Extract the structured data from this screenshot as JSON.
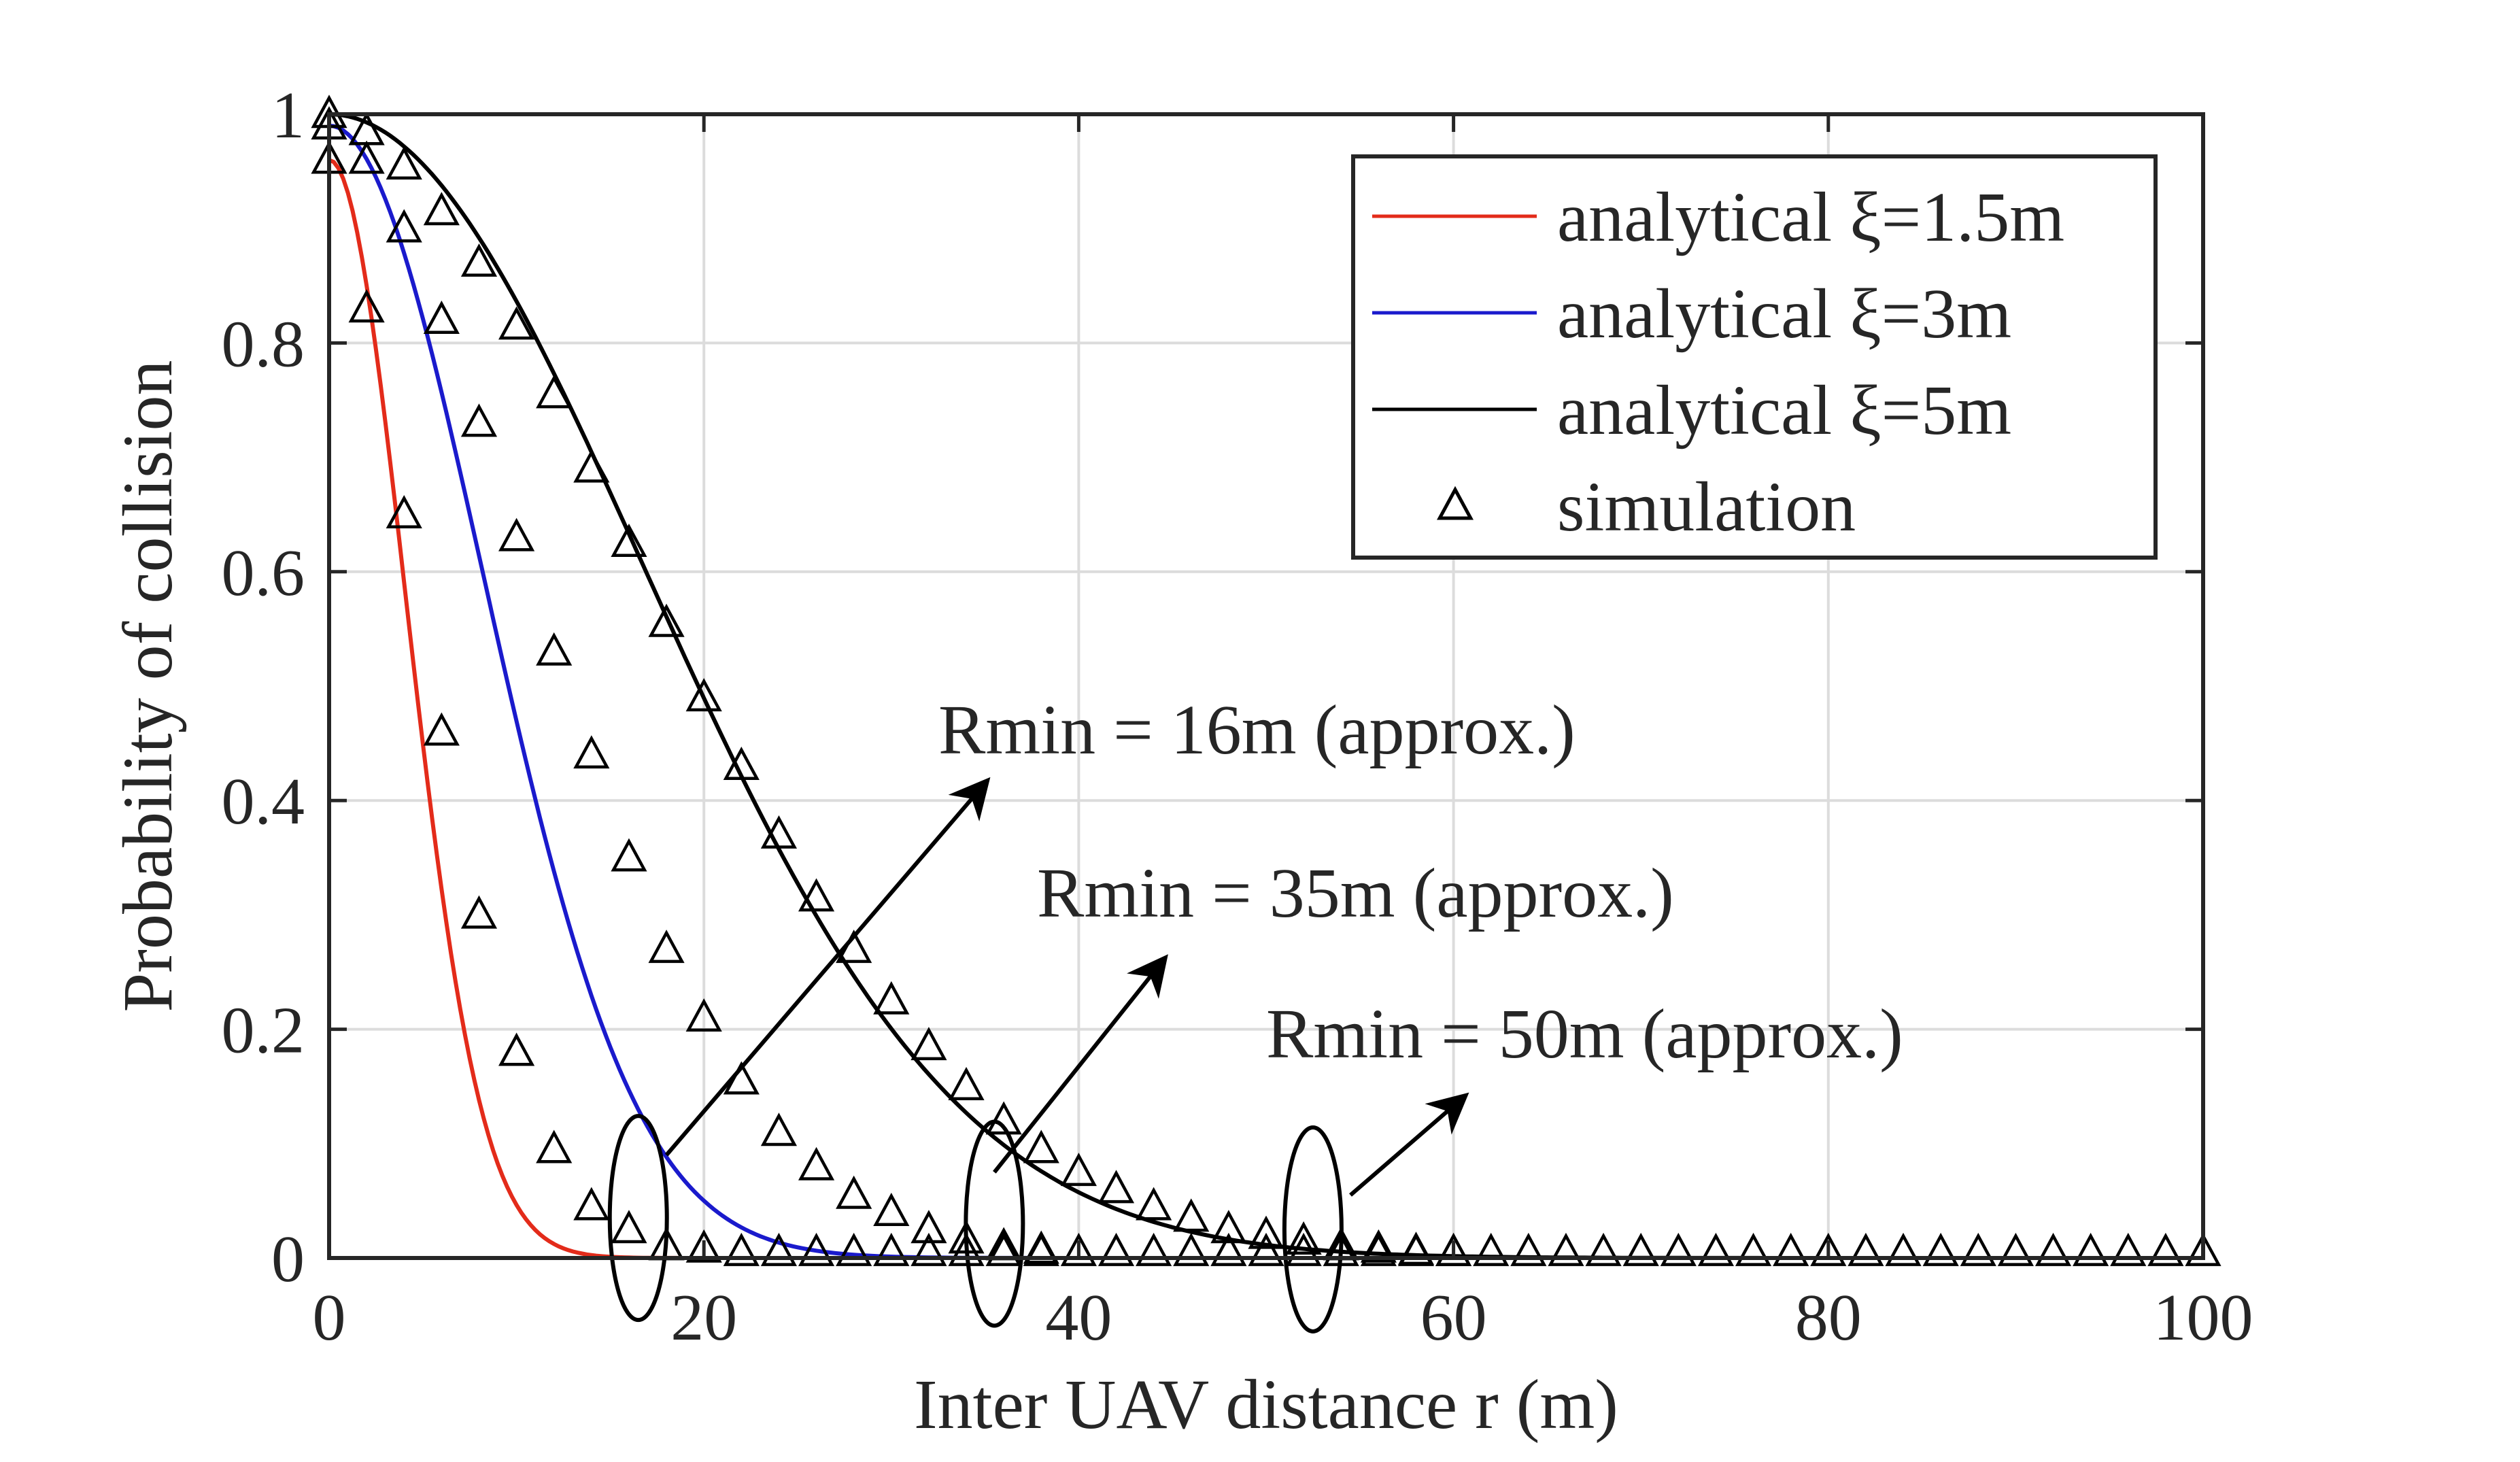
{
  "chart_data": {
    "type": "line",
    "title": "",
    "xlabel": "Inter UAV distance r (m)",
    "ylabel": "Probability of collision",
    "xlim": [
      0,
      100
    ],
    "ylim": [
      0,
      1
    ],
    "xticks": [
      0,
      20,
      40,
      60,
      80,
      100
    ],
    "yticks": [
      0,
      0.2,
      0.4,
      0.6,
      0.8,
      1
    ],
    "xtick_labels": [
      "0",
      "20",
      "40",
      "60",
      "80",
      "100"
    ],
    "ytick_labels": [
      "0",
      "0.2",
      "0.4",
      "0.6",
      "0.8",
      "1"
    ],
    "grid": true,
    "legend_position": "top-right",
    "colors": {
      "xi_1_5": "#e32b1a",
      "xi_3": "#1a1acc",
      "xi_5": "#000000",
      "markers": "#000000"
    },
    "series": [
      {
        "name": "analytical ξ=1.5m",
        "kind": "line",
        "color": "#e32b1a",
        "xi": 1.5
      },
      {
        "name": "analytical ξ=3m",
        "kind": "line",
        "color": "#1a1acc",
        "xi": 3
      },
      {
        "name": "analytical ξ=5m",
        "kind": "line",
        "color": "#000000",
        "xi": 5
      },
      {
        "name": "simulation",
        "kind": "markers",
        "marker": "triangle",
        "groups": [
          {
            "xi": 1.5,
            "points": [
              [
                0,
                0.96
              ],
              [
                2,
                0.83
              ],
              [
                4,
                0.65
              ],
              [
                6,
                0.46
              ],
              [
                8,
                0.3
              ],
              [
                10,
                0.18
              ],
              [
                12,
                0.095
              ],
              [
                14,
                0.045
              ],
              [
                16,
                0.025
              ],
              [
                18,
                0.01
              ],
              [
                20,
                0.008
              ],
              [
                22,
                0.005
              ],
              [
                24,
                0.005
              ],
              [
                26,
                0.005
              ],
              [
                28,
                0.005
              ],
              [
                30,
                0.005
              ],
              [
                32,
                0.005
              ],
              [
                34,
                0.005
              ],
              [
                36,
                0.005
              ],
              [
                38,
                0.005
              ],
              [
                40,
                0.005
              ],
              [
                42,
                0.005
              ],
              [
                44,
                0.005
              ],
              [
                46,
                0.005
              ],
              [
                48,
                0.005
              ],
              [
                50,
                0.005
              ],
              [
                52,
                0.005
              ],
              [
                54,
                0.005
              ],
              [
                56,
                0.005
              ],
              [
                58,
                0.005
              ],
              [
                60,
                0.005
              ],
              [
                62,
                0.005
              ],
              [
                64,
                0.005
              ],
              [
                66,
                0.005
              ],
              [
                68,
                0.005
              ],
              [
                70,
                0.005
              ],
              [
                72,
                0.005
              ],
              [
                74,
                0.005
              ],
              [
                76,
                0.005
              ],
              [
                78,
                0.005
              ],
              [
                80,
                0.005
              ],
              [
                82,
                0.005
              ],
              [
                84,
                0.005
              ],
              [
                86,
                0.005
              ],
              [
                88,
                0.005
              ],
              [
                90,
                0.005
              ],
              [
                92,
                0.005
              ],
              [
                94,
                0.005
              ],
              [
                96,
                0.005
              ],
              [
                98,
                0.005
              ],
              [
                100,
                0.005
              ]
            ]
          },
          {
            "xi": 3,
            "points": [
              [
                0,
                0.99
              ],
              [
                2,
                0.96
              ],
              [
                4,
                0.9
              ],
              [
                6,
                0.82
              ],
              [
                8,
                0.73
              ],
              [
                10,
                0.63
              ],
              [
                12,
                0.53
              ],
              [
                14,
                0.44
              ],
              [
                16,
                0.35
              ],
              [
                18,
                0.27
              ],
              [
                20,
                0.21
              ],
              [
                22,
                0.155
              ],
              [
                24,
                0.11
              ],
              [
                26,
                0.08
              ],
              [
                28,
                0.055
              ],
              [
                30,
                0.04
              ],
              [
                32,
                0.025
              ],
              [
                34,
                0.016
              ],
              [
                36,
                0.01
              ],
              [
                38,
                0.007
              ]
            ]
          },
          {
            "xi": 5,
            "points": [
              [
                0,
                1.0
              ],
              [
                2,
                0.985
              ],
              [
                4,
                0.955
              ],
              [
                6,
                0.915
              ],
              [
                8,
                0.87
              ],
              [
                10,
                0.815
              ],
              [
                12,
                0.755
              ],
              [
                14,
                0.69
              ],
              [
                16,
                0.625
              ],
              [
                18,
                0.555
              ],
              [
                20,
                0.49
              ],
              [
                22,
                0.43
              ],
              [
                24,
                0.37
              ],
              [
                26,
                0.315
              ],
              [
                28,
                0.27
              ],
              [
                30,
                0.225
              ],
              [
                32,
                0.185
              ],
              [
                34,
                0.15
              ],
              [
                36,
                0.12
              ],
              [
                38,
                0.095
              ],
              [
                40,
                0.075
              ],
              [
                42,
                0.06
              ],
              [
                44,
                0.045
              ],
              [
                46,
                0.035
              ],
              [
                48,
                0.025
              ],
              [
                50,
                0.02
              ],
              [
                52,
                0.015
              ],
              [
                54,
                0.01
              ],
              [
                56,
                0.008
              ],
              [
                58,
                0.006
              ],
              [
                60,
                0.005
              ]
            ]
          }
        ]
      }
    ],
    "annotations": [
      {
        "text": "Rmin = 16m (approx.)",
        "x": 16.5
      },
      {
        "text": "Rmin = 35m (approx.)",
        "x": 35.5
      },
      {
        "text": "Rmin = 50m (approx.)",
        "x": 52.5
      }
    ]
  }
}
